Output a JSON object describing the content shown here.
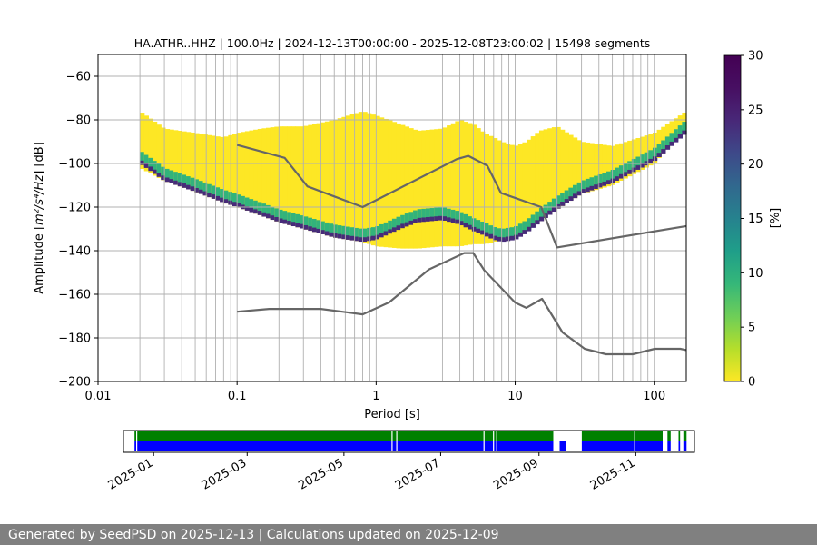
{
  "chart_data": [
    {
      "type": "heatmap",
      "title": "HA.ATHR..HHZ | 100.0Hz | 2024-12-13T00:00:00 - 2025-12-08T23:00:02 | 15498 segments",
      "xlabel": "Period [s]",
      "ylabel_prefix": "Amplitude [",
      "ylabel_math": "m²/s⁴/Hz",
      "ylabel_suffix": "] [dB]",
      "xscale": "log",
      "xlim": [
        0.01,
        170
      ],
      "ylim": [
        -200,
        -50
      ],
      "xticks": [
        {
          "value": 0.01,
          "label": "0.01"
        },
        {
          "value": 0.1,
          "label": "0.1"
        },
        {
          "value": 1,
          "label": "1"
        },
        {
          "value": 10,
          "label": "10"
        },
        {
          "value": 100,
          "label": "100"
        }
      ],
      "yticks": [
        {
          "value": -60,
          "label": "−60"
        },
        {
          "value": -80,
          "label": "−80"
        },
        {
          "value": -100,
          "label": "−100"
        },
        {
          "value": -120,
          "label": "−120"
        },
        {
          "value": -140,
          "label": "−140"
        },
        {
          "value": -160,
          "label": "−160"
        },
        {
          "value": -180,
          "label": "−180"
        },
        {
          "value": -200,
          "label": "−200"
        }
      ],
      "grid": true,
      "colorbar": {
        "label": "[%]",
        "colormap": "viridis",
        "range": [
          0,
          30
        ],
        "ticks": [
          {
            "value": 0,
            "label": "0"
          },
          {
            "value": 5,
            "label": "5"
          },
          {
            "value": 10,
            "label": "10"
          },
          {
            "value": 15,
            "label": "15"
          },
          {
            "value": 20,
            "label": "20"
          },
          {
            "value": 25,
            "label": "25"
          },
          {
            "value": 30,
            "label": "30"
          }
        ]
      },
      "psd_envelope": {
        "period": [
          0.02,
          0.03,
          0.05,
          0.08,
          0.1,
          0.15,
          0.2,
          0.3,
          0.5,
          0.8,
          1.0,
          1.5,
          2.0,
          3.0,
          4.0,
          5.0,
          6.0,
          7.0,
          8.0,
          10.0,
          12.0,
          15.0,
          20.0,
          30.0,
          50.0,
          100.0,
          170.0
        ],
        "top": [
          -76,
          -84,
          -86,
          -88,
          -86,
          -84,
          -83,
          -83,
          -80,
          -76,
          -78,
          -82,
          -85,
          -84,
          -80,
          -82,
          -86,
          -88,
          -90,
          -92,
          -90,
          -85,
          -83,
          -90,
          -92,
          -86,
          -76
        ],
        "bottom": [
          -102,
          -108,
          -113,
          -118,
          -120,
          -124,
          -127,
          -130,
          -134,
          -136,
          -138,
          -139,
          -139,
          -138,
          -138,
          -137,
          -137,
          -136,
          -135,
          -134,
          -131,
          -127,
          -121,
          -114,
          -110,
          -100,
          -83
        ],
        "mode": [
          -98,
          -106,
          -111,
          -116,
          -118,
          -122,
          -125,
          -128,
          -132,
          -134,
          -133,
          -128,
          -125,
          -124,
          -126,
          -129,
          -131,
          -133,
          -134,
          -133,
          -130,
          -125,
          -119,
          -112,
          -107,
          -97,
          -84
        ]
      },
      "noise_models": [
        {
          "period": [
            0.1,
            0.17,
            0.4,
            0.8,
            1.24,
            2.4,
            4.3,
            5.0,
            6.0,
            10.0,
            12.0,
            15.6,
            21.9,
            31.6,
            45.0,
            70.0,
            101.0,
            154.0,
            170.0
          ],
          "values": [
            -168,
            -166.7,
            -166.7,
            -169.2,
            -163.7,
            -148.6,
            -141.1,
            -141.1,
            -149.0,
            -163.8,
            -166.2,
            -162.1,
            -177.5,
            -185.0,
            -187.5,
            -187.5,
            -185.0,
            -185.0,
            -185.6
          ]
        },
        {
          "period": [
            0.1,
            0.22,
            0.32,
            0.8,
            3.8,
            4.6,
            6.3,
            7.9,
            15.4,
            20.0,
            170.0
          ],
          "values": [
            -91.5,
            -97.4,
            -110.5,
            -120.0,
            -98.0,
            -96.5,
            -101.0,
            -113.5,
            -120.0,
            -138.5,
            -128.7
          ]
        }
      ]
    },
    {
      "type": "timeline",
      "range": [
        "2024-12-13",
        "2025-12-08"
      ],
      "xticks": [
        "2025-01",
        "2025-03",
        "2025-05",
        "2025-07",
        "2025-09",
        "2025-11"
      ],
      "xtick_dates": [
        "2025-01-01",
        "2025-03-01",
        "2025-05-01",
        "2025-07-01",
        "2025-09-01",
        "2025-11-01"
      ],
      "data_availability": [
        [
          "2024-12-20",
          "2025-09-10"
        ],
        [
          "2025-09-14",
          "2025-09-18"
        ],
        [
          "2025-09-28",
          "2025-11-18"
        ],
        [
          "2025-11-21",
          "2025-11-23"
        ],
        [
          "2025-11-28",
          "2025-11-29"
        ],
        [
          "2025-12-01",
          "2025-12-03"
        ]
      ],
      "psd_availability": [
        [
          "2024-12-20",
          "2025-09-10"
        ],
        [
          "2025-09-28",
          "2025-11-18"
        ],
        [
          "2025-11-21",
          "2025-11-23"
        ],
        [
          "2025-11-28",
          "2025-11-29"
        ],
        [
          "2025-12-01",
          "2025-12-03"
        ]
      ],
      "gaps": [
        "2024-12-21",
        "2025-05-31",
        "2025-06-03",
        "2025-07-28",
        "2025-08-03",
        "2025-08-05",
        "2025-10-31"
      ],
      "colors": {
        "data": "#0000ff",
        "psd": "#008000"
      }
    }
  ],
  "footer": {
    "text": "Generated by SeedPSD on 2025-12-13 | Calculations updated on 2025-12-09"
  }
}
